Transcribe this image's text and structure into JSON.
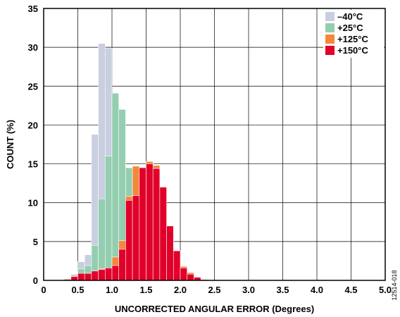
{
  "chart_data": {
    "type": "bar",
    "xlabel": "UNCORRECTED ANGULAR ERROR (Degrees)",
    "ylabel": "COUNT (%)",
    "xlim": [
      0,
      5.0
    ],
    "ylim": [
      0,
      35
    ],
    "x_ticks": [
      "0",
      "0.5",
      "1.0",
      "1.5",
      "2.0",
      "2.5",
      "3.0",
      "3.5",
      "4.0",
      "4.5",
      "5.0"
    ],
    "y_ticks": [
      "0",
      "5",
      "10",
      "15",
      "20",
      "25",
      "30",
      "35"
    ],
    "grid": true,
    "legend_position": "top-right",
    "bin_width": 0.1,
    "bin_starts": [
      0.1,
      0.2,
      0.3,
      0.4,
      0.5,
      0.6,
      0.7,
      0.8,
      0.9,
      1.0,
      1.1,
      1.2,
      1.3,
      1.4,
      1.5,
      1.6,
      1.7,
      1.8,
      1.9,
      2.0,
      2.1,
      2.2,
      2.3,
      2.4,
      2.5,
      2.6,
      2.7,
      2.8,
      2.9
    ],
    "series": [
      {
        "name": "–40°C",
        "color": "#c9cfe0",
        "values": [
          0,
          0,
          0.2,
          0.8,
          2.4,
          3.3,
          18.8,
          30.5,
          29.9,
          8.0,
          2.0,
          0.5,
          0.1,
          0,
          0,
          0,
          0,
          0,
          0,
          0,
          0,
          0,
          0,
          0,
          0,
          0,
          0,
          0,
          0
        ]
      },
      {
        "name": "+25°C",
        "color": "#94ceb0",
        "values": [
          0,
          0,
          0.1,
          0.5,
          1.5,
          1.9,
          4.5,
          10.5,
          16.0,
          24.1,
          22.0,
          14.5,
          6.0,
          2.5,
          0.8,
          0.3,
          0.1,
          0,
          0,
          0,
          0,
          0,
          0,
          0,
          0,
          0,
          0,
          0,
          0
        ]
      },
      {
        "name": "+125°C",
        "color": "#f4883a",
        "values": [
          0,
          0,
          0.2,
          0.4,
          0.7,
          0.9,
          1.1,
          1.5,
          1.6,
          3.0,
          5.1,
          10.8,
          14.7,
          14.5,
          15.3,
          14.8,
          12.0,
          7.0,
          3.8,
          1.8,
          1.0,
          0.2,
          0.1,
          0,
          0,
          0,
          0,
          0,
          0
        ]
      },
      {
        "name": "+150°C",
        "color": "#e0002a",
        "values": [
          0,
          0,
          0.1,
          0.5,
          0.9,
          0.9,
          1.2,
          1.4,
          1.6,
          1.9,
          4.0,
          10.3,
          10.9,
          14.5,
          15.0,
          14.4,
          12.0,
          7.0,
          3.8,
          1.6,
          0.8,
          0.4,
          0.1,
          0,
          0,
          0,
          0,
          0,
          0
        ]
      }
    ]
  },
  "figure_id": "12514-018"
}
